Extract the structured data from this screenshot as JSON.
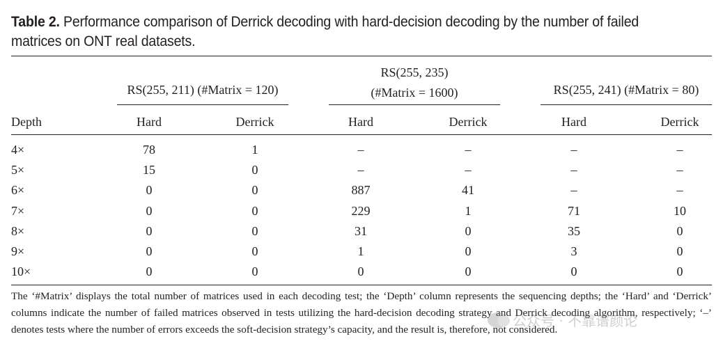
{
  "caption": {
    "label": "Table 2.",
    "text": " Performance comparison of Derrick decoding with hard-decision decoding by the number of failed matrices on ONT real datasets."
  },
  "table": {
    "groups": [
      {
        "title_line1": "RS(255, 211) (#Matrix = 120)",
        "title_line2": ""
      },
      {
        "title_line1": "RS(255, 235)",
        "title_line2": "(#Matrix = 1600)"
      },
      {
        "title_line1": "RS(255, 241) (#Matrix = 80)",
        "title_line2": ""
      }
    ],
    "columns": [
      "Depth",
      "Hard",
      "Derrick",
      "Hard",
      "Derrick",
      "Hard",
      "Derrick"
    ],
    "rows": [
      [
        "4×",
        "78",
        "1",
        "–",
        "–",
        "–",
        "–"
      ],
      [
        "5×",
        "15",
        "0",
        "–",
        "–",
        "–",
        "–"
      ],
      [
        "6×",
        "0",
        "0",
        "887",
        "41",
        "–",
        "–"
      ],
      [
        "7×",
        "0",
        "0",
        "229",
        "1",
        "71",
        "10"
      ],
      [
        "8×",
        "0",
        "0",
        "31",
        "0",
        "35",
        "0"
      ],
      [
        "9×",
        "0",
        "0",
        "1",
        "0",
        "3",
        "0"
      ],
      [
        "10×",
        "0",
        "0",
        "0",
        "0",
        "0",
        "0"
      ]
    ]
  },
  "footnote": "The ‘#Matrix’ displays the total number of matrices used in each decoding test; the ‘Depth’ column represents the sequencing depths; the ‘Hard’ and ‘Derrick’ columns indicate the number of failed matrices observed in tests utilizing the hard-decision decoding strategy and Derrick decoding algorithm, respectively; ‘–’ denotes tests where the number of errors exceeds the soft-decision strategy’s capacity, and the result is, therefore, not considered.",
  "watermark": {
    "icon": "wechat-icon",
    "text": "公众号 · 不靠谱颜论"
  }
}
